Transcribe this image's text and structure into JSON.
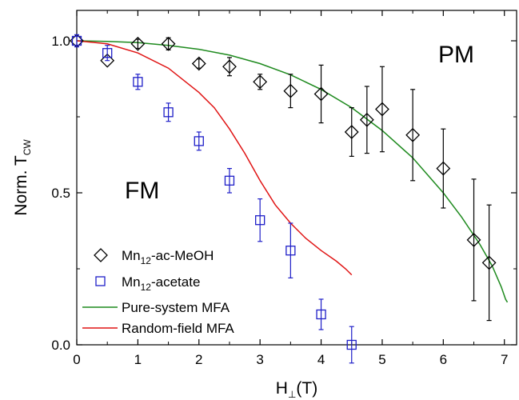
{
  "chart_data": {
    "type": "scatter",
    "xlabel": "H⊥(T)",
    "xlabel_main": "H",
    "xlabel_sub": "⊥",
    "xlabel_suffix": "(T)",
    "ylabel": "Norm. TCW",
    "ylabel_main": "Norm. T",
    "ylabel_sub": "CW",
    "xlim": [
      0,
      7.2
    ],
    "ylim": [
      0,
      1.1
    ],
    "xticks": [
      "0",
      "1",
      "2",
      "3",
      "4",
      "5",
      "6",
      "7"
    ],
    "yticks": [
      "0.0",
      "0.5",
      "1.0"
    ],
    "grid": false,
    "legend_position": "bottom-left",
    "annotations": [
      {
        "text": "PM",
        "x": 6.0,
        "y": 1.0
      },
      {
        "text": "FM",
        "x": 1.2,
        "y": 0.54
      }
    ],
    "series": [
      {
        "name_main": "Mn",
        "name_sub": "12",
        "name_suffix": "-ac-MeOH",
        "marker": "diamond",
        "color": "#000000",
        "points": [
          {
            "x": 0.0,
            "y": 1.0,
            "err": 0.0
          },
          {
            "x": 0.5,
            "y": 0.935,
            "err": 0.0
          },
          {
            "x": 1.0,
            "y": 0.99,
            "err": 0.015
          },
          {
            "x": 1.5,
            "y": 0.99,
            "err": 0.02
          },
          {
            "x": 2.0,
            "y": 0.925,
            "err": 0.015
          },
          {
            "x": 2.5,
            "y": 0.915,
            "err": 0.03
          },
          {
            "x": 3.0,
            "y": 0.865,
            "err": 0.025
          },
          {
            "x": 3.5,
            "y": 0.835,
            "err": 0.055
          },
          {
            "x": 4.0,
            "y": 0.825,
            "err": 0.095
          },
          {
            "x": 4.5,
            "y": 0.7,
            "err": 0.08
          },
          {
            "x": 4.75,
            "y": 0.74,
            "err": 0.11
          },
          {
            "x": 5.0,
            "y": 0.775,
            "err": 0.14
          },
          {
            "x": 5.5,
            "y": 0.69,
            "err": 0.15
          },
          {
            "x": 6.0,
            "y": 0.58,
            "err": 0.13
          },
          {
            "x": 6.5,
            "y": 0.345,
            "err": 0.2
          },
          {
            "x": 6.75,
            "y": 0.27,
            "err": 0.19
          }
        ]
      },
      {
        "name_main": "Mn",
        "name_sub": "12",
        "name_suffix": "-acetate",
        "marker": "square",
        "color": "#1f1fc8",
        "points": [
          {
            "x": 0.0,
            "y": 1.0,
            "err": 0.02
          },
          {
            "x": 0.5,
            "y": 0.96,
            "err": 0.025
          },
          {
            "x": 1.0,
            "y": 0.865,
            "err": 0.025
          },
          {
            "x": 1.5,
            "y": 0.765,
            "err": 0.03
          },
          {
            "x": 2.0,
            "y": 0.67,
            "err": 0.03
          },
          {
            "x": 2.5,
            "y": 0.54,
            "err": 0.04
          },
          {
            "x": 3.0,
            "y": 0.41,
            "err": 0.07
          },
          {
            "x": 3.5,
            "y": 0.31,
            "err": 0.09
          },
          {
            "x": 4.0,
            "y": 0.1,
            "err": 0.05
          },
          {
            "x": 4.5,
            "y": 0.0,
            "err": 0.06
          }
        ]
      },
      {
        "name": "Pure-system MFA",
        "line": true,
        "color": "#1e8a1e",
        "x": [
          0.0,
          0.5,
          1.0,
          1.5,
          2.0,
          2.5,
          3.0,
          3.5,
          4.0,
          4.5,
          5.0,
          5.5,
          6.0,
          6.3,
          6.6,
          6.8,
          6.95,
          7.02,
          7.05
        ],
        "y": [
          1.0,
          0.998,
          0.994,
          0.985,
          0.972,
          0.953,
          0.925,
          0.888,
          0.84,
          0.78,
          0.705,
          0.615,
          0.5,
          0.42,
          0.33,
          0.26,
          0.19,
          0.15,
          0.14
        ]
      },
      {
        "name": "Random-field MFA",
        "line": true,
        "color": "#e01414",
        "x": [
          0.0,
          0.5,
          1.0,
          1.5,
          2.0,
          2.25,
          2.5,
          2.75,
          3.0,
          3.25,
          3.5,
          3.75,
          4.0,
          4.25,
          4.4,
          4.5
        ],
        "y": [
          1.0,
          0.99,
          0.96,
          0.91,
          0.83,
          0.78,
          0.71,
          0.63,
          0.54,
          0.46,
          0.4,
          0.35,
          0.31,
          0.275,
          0.25,
          0.23
        ]
      }
    ]
  }
}
